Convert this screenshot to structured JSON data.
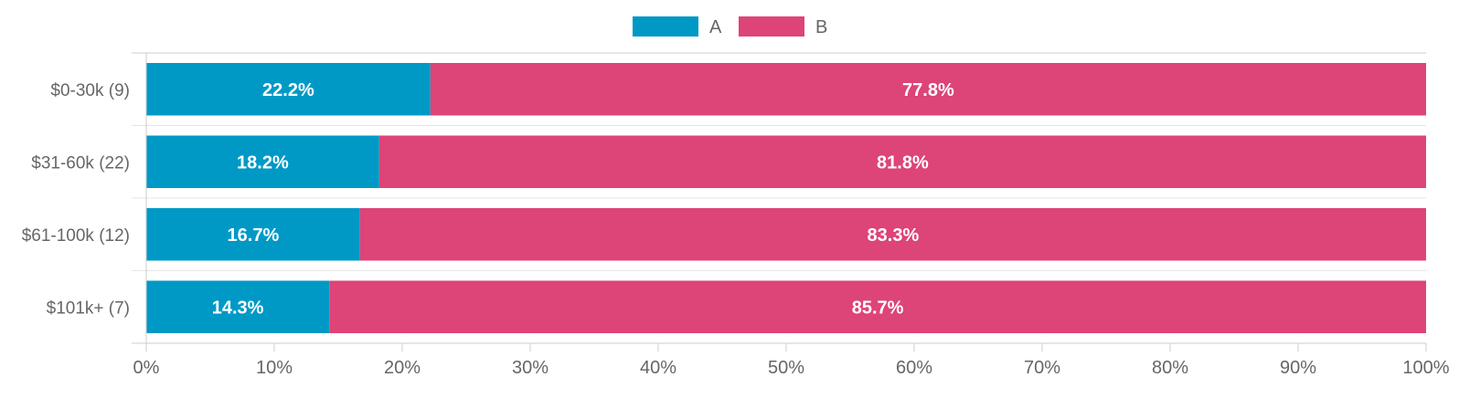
{
  "chart_data": {
    "type": "bar",
    "orientation": "horizontal",
    "stacked": "percent",
    "categories": [
      "$0-30k (9)",
      "$31-60k (22)",
      "$61-100k (12)",
      "$101k+ (7)"
    ],
    "series": [
      {
        "name": "A",
        "color": "#0099c6",
        "values": [
          22.2,
          18.2,
          16.7,
          14.3
        ],
        "labels": [
          "22.2%",
          "18.2%",
          "16.7%",
          "14.3%"
        ]
      },
      {
        "name": "B",
        "color": "#dd4477",
        "values": [
          77.8,
          81.8,
          83.3,
          85.7
        ],
        "labels": [
          "77.8%",
          "81.8%",
          "83.3%",
          "85.7%"
        ]
      }
    ],
    "xlim": [
      0,
      100
    ],
    "xticks": [
      0,
      10,
      20,
      30,
      40,
      50,
      60,
      70,
      80,
      90,
      100
    ],
    "xtick_labels": [
      "0%",
      "10%",
      "20%",
      "30%",
      "40%",
      "50%",
      "60%",
      "70%",
      "80%",
      "90%",
      "100%"
    ],
    "legend_position": "top-center",
    "grid": "horizontal separators between categories",
    "title": "",
    "xlabel": "",
    "ylabel": ""
  }
}
